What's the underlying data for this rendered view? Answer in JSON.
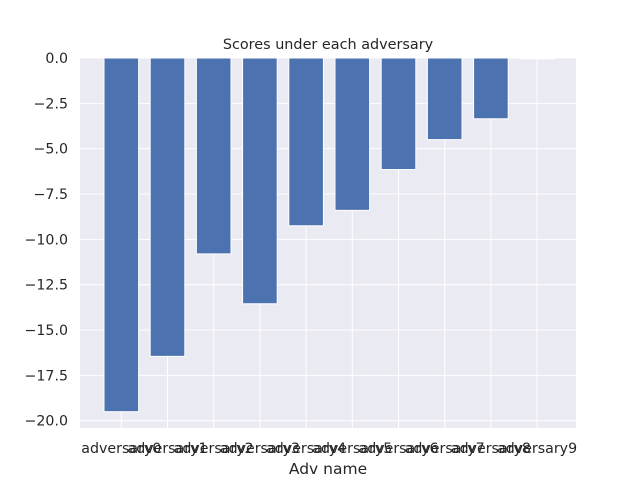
{
  "chart_data": {
    "type": "bar",
    "title": "Scores under each adversary",
    "xlabel": "Adv name",
    "ylabel": "",
    "categories": [
      "adversary0",
      "adversary1",
      "adversary2",
      "adversary3",
      "adversary4",
      "adversary5",
      "adversary6",
      "adversary7",
      "adversary8",
      "adversary9"
    ],
    "values": [
      -19.5,
      -16.45,
      -10.8,
      -13.55,
      -9.25,
      -8.4,
      -6.15,
      -4.5,
      -3.35,
      -0.05
    ],
    "ylim": [
      -20.4,
      0.0
    ],
    "yticks": [
      0.0,
      -2.5,
      -5.0,
      -7.5,
      -10.0,
      -12.5,
      -15.0,
      -17.5,
      -20.0
    ],
    "ytick_labels": [
      "0.0",
      "−2.5",
      "−5.0",
      "−7.5",
      "−10.0",
      "−12.5",
      "−15.0",
      "−17.5",
      "−20.0"
    ],
    "grid": true,
    "colors": {
      "bar": "#4c72b0",
      "background": "#eaeaf2",
      "grid": "#ffffff",
      "text": "#262626"
    }
  }
}
